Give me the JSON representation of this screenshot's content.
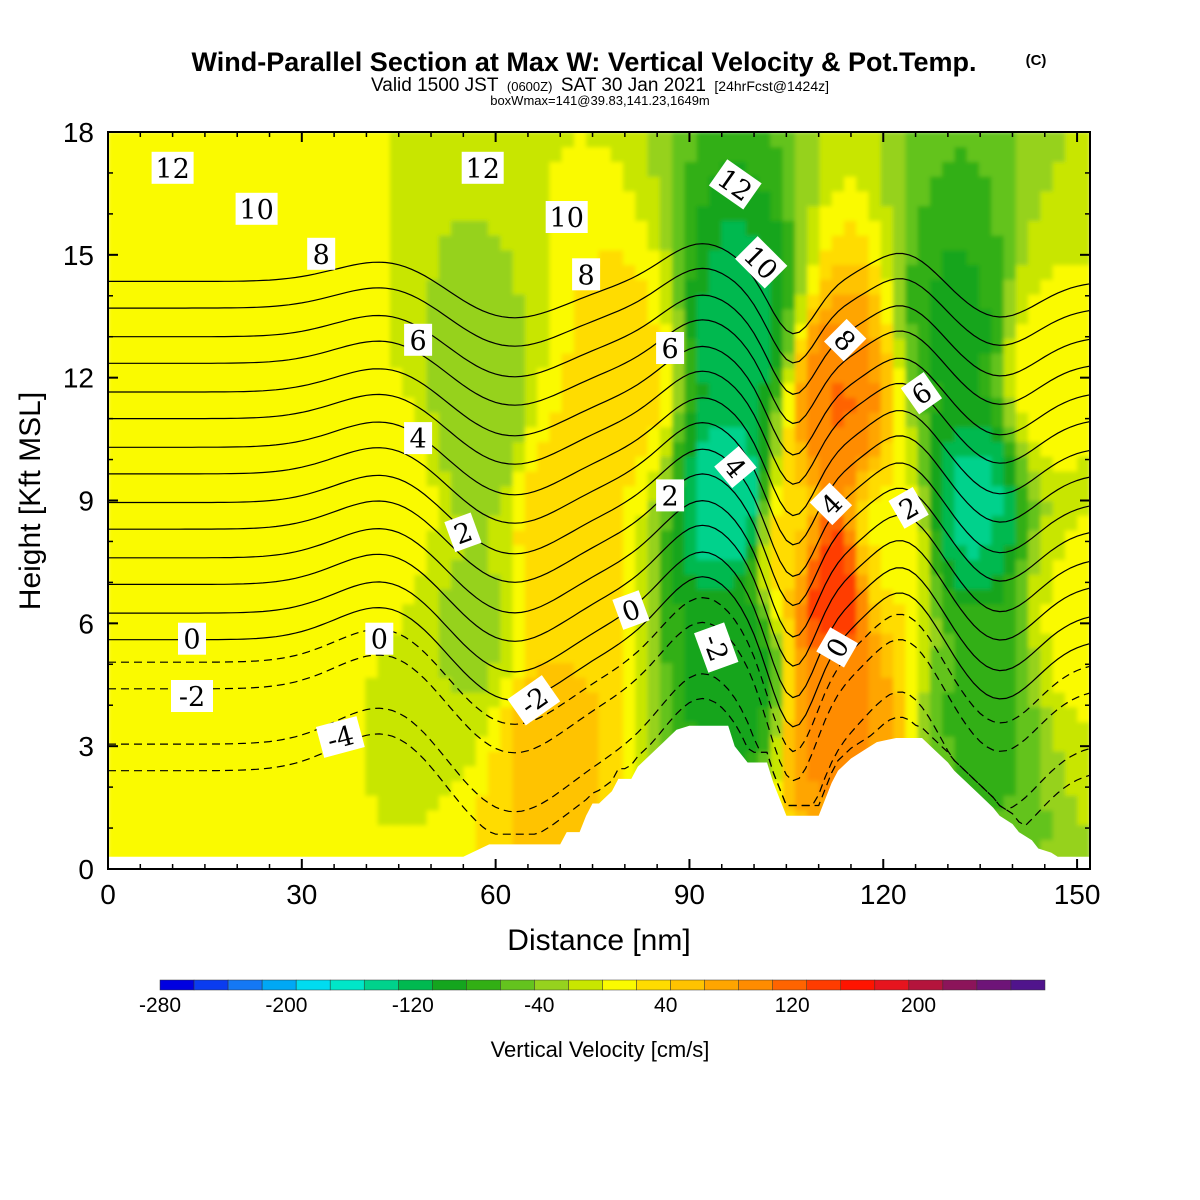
{
  "chart_data": {
    "type": "heatmap",
    "title": "Wind-Parallel Section at Max W: Vertical Velocity & Pot.Temp.",
    "title_mark": "(C)",
    "subtitle_parts": [
      "Valid 1500 JST",
      "(0600Z)",
      "SAT 30 Jan 2021",
      "[24hrFcst@1424z]"
    ],
    "subtitle2": "boxWmax=141@39.83,141.23,1649m",
    "xlabel": "Distance [nm]",
    "ylabel": "Height [Kft MSL]",
    "xlim": [
      0,
      152
    ],
    "ylim": [
      0,
      18
    ],
    "xticks": [
      0,
      30,
      60,
      90,
      120,
      150
    ],
    "yticks": [
      0,
      3,
      6,
      9,
      12,
      15,
      18
    ],
    "grid": false,
    "colorbar": {
      "label": "Vertical Velocity [cm/s]",
      "range": [
        -280,
        280
      ],
      "tick_labels": [
        -280,
        -200,
        -120,
        -40,
        40,
        120,
        200
      ],
      "colors": [
        "#0000e0",
        "#0a3cf0",
        "#1478f5",
        "#00a8f5",
        "#00dcf0",
        "#00e6c8",
        "#00d28c",
        "#00b950",
        "#14a51e",
        "#32af14",
        "#64c31e",
        "#96d21e",
        "#c8e600",
        "#fafa00",
        "#ffdc00",
        "#ffc300",
        "#ffa500",
        "#ff8c00",
        "#ff6400",
        "#ff3c00",
        "#ff1400",
        "#e6141e",
        "#b4143c",
        "#8c145a",
        "#6e1478",
        "#50148c"
      ]
    },
    "terrain_profile": {
      "x": [
        0,
        55,
        59,
        64,
        66,
        68,
        70,
        71,
        73,
        74,
        75,
        76,
        78,
        79,
        81,
        82,
        84,
        86,
        88,
        90,
        93,
        96,
        97,
        99,
        100,
        102,
        103,
        105,
        106,
        108,
        110,
        112,
        113,
        115,
        117,
        119,
        122,
        126,
        128,
        130,
        131,
        133,
        135,
        137,
        138,
        140,
        141,
        143,
        144,
        146,
        147,
        148,
        150,
        152
      ],
      "height": [
        0.3,
        0.3,
        0.6,
        0.6,
        0.6,
        0.6,
        0.6,
        0.9,
        0.9,
        1.3,
        1.6,
        1.6,
        1.9,
        2.2,
        2.2,
        2.5,
        2.8,
        3.1,
        3.4,
        3.5,
        3.5,
        3.5,
        3.0,
        2.6,
        2.6,
        2.6,
        2.1,
        1.3,
        1.3,
        1.3,
        1.3,
        2.1,
        2.4,
        2.7,
        2.9,
        3.1,
        3.2,
        3.2,
        2.9,
        2.6,
        2.4,
        2.1,
        1.8,
        1.5,
        1.3,
        1.1,
        0.9,
        0.7,
        0.5,
        0.4,
        0.3,
        0.3,
        0.3,
        0.3
      ]
    },
    "w_features": [
      {
        "x": 0,
        "y": 12,
        "w": 8
      },
      {
        "x": 15,
        "y": 6,
        "w": 18
      },
      {
        "x": 30,
        "y": 13,
        "w": 15
      },
      {
        "x": 45,
        "y": 9,
        "w": 8
      },
      {
        "x": 57,
        "y": 11,
        "w": -38
      },
      {
        "x": 57,
        "y": 6,
        "w": -25
      },
      {
        "x": 70,
        "y": 8,
        "w": 42
      },
      {
        "x": 68,
        "y": 3,
        "w": 50
      },
      {
        "x": 80,
        "y": 12,
        "w": 30
      },
      {
        "x": 97,
        "y": 9,
        "w": -150
      },
      {
        "x": 98,
        "y": 13,
        "w": -120
      },
      {
        "x": 98,
        "y": 5,
        "w": -105
      },
      {
        "x": 106,
        "y": 8,
        "w": 35
      },
      {
        "x": 112,
        "y": 7,
        "w": 160
      },
      {
        "x": 113,
        "y": 11,
        "w": 110
      },
      {
        "x": 112,
        "y": 4,
        "w": 95
      },
      {
        "x": 120,
        "y": 8,
        "w": 15
      },
      {
        "x": 134,
        "y": 9,
        "w": -135
      },
      {
        "x": 132,
        "y": 13,
        "w": -90
      },
      {
        "x": 136,
        "y": 4,
        "w": -70
      },
      {
        "x": 145,
        "y": 12,
        "w": 10
      },
      {
        "x": 150,
        "y": 6,
        "w": 5
      }
    ],
    "theta_levels": [
      -4,
      -2,
      0,
      2,
      4,
      6,
      8,
      10,
      12
    ],
    "theta_labels": [
      {
        "text": "12",
        "x": 10,
        "y": 17.1,
        "angle": 0
      },
      {
        "text": "10",
        "x": 23,
        "y": 16.1,
        "angle": 0
      },
      {
        "text": "8",
        "x": 33,
        "y": 15.0,
        "angle": 0
      },
      {
        "text": "6",
        "x": 48,
        "y": 12.9,
        "angle": 0
      },
      {
        "text": "4",
        "x": 48,
        "y": 10.5,
        "angle": 0
      },
      {
        "text": "2",
        "x": 55,
        "y": 8.2,
        "angle": -20
      },
      {
        "text": "0",
        "x": 13,
        "y": 5.6,
        "angle": 0
      },
      {
        "text": "0",
        "x": 42,
        "y": 5.6,
        "angle": 0
      },
      {
        "text": "-2",
        "x": 13,
        "y": 4.2,
        "angle": 0
      },
      {
        "text": "-4",
        "x": 36,
        "y": 3.2,
        "angle": -15
      },
      {
        "text": "12",
        "x": 58,
        "y": 17.1,
        "angle": 0
      },
      {
        "text": "10",
        "x": 71,
        "y": 15.9,
        "angle": 0
      },
      {
        "text": "8",
        "x": 74,
        "y": 14.5,
        "angle": 0
      },
      {
        "text": "6",
        "x": 87,
        "y": 12.7,
        "angle": 0
      },
      {
        "text": "2",
        "x": 87,
        "y": 9.1,
        "angle": 0
      },
      {
        "text": "0",
        "x": 81,
        "y": 6.3,
        "angle": -20
      },
      {
        "text": "-2",
        "x": 66,
        "y": 4.1,
        "angle": -35
      },
      {
        "text": "12",
        "x": 97,
        "y": 16.7,
        "angle": 35
      },
      {
        "text": "10",
        "x": 101,
        "y": 14.8,
        "angle": 45
      },
      {
        "text": "4",
        "x": 97,
        "y": 9.8,
        "angle": 50
      },
      {
        "text": "-2",
        "x": 94,
        "y": 5.4,
        "angle": 70
      },
      {
        "text": "8",
        "x": 114,
        "y": 12.9,
        "angle": 45
      },
      {
        "text": "4",
        "x": 112,
        "y": 8.9,
        "angle": -45
      },
      {
        "text": "0",
        "x": 113,
        "y": 5.4,
        "angle": -60
      },
      {
        "text": "6",
        "x": 126,
        "y": 11.6,
        "angle": -35
      },
      {
        "text": "2",
        "x": 124,
        "y": 8.8,
        "angle": -30
      }
    ]
  }
}
